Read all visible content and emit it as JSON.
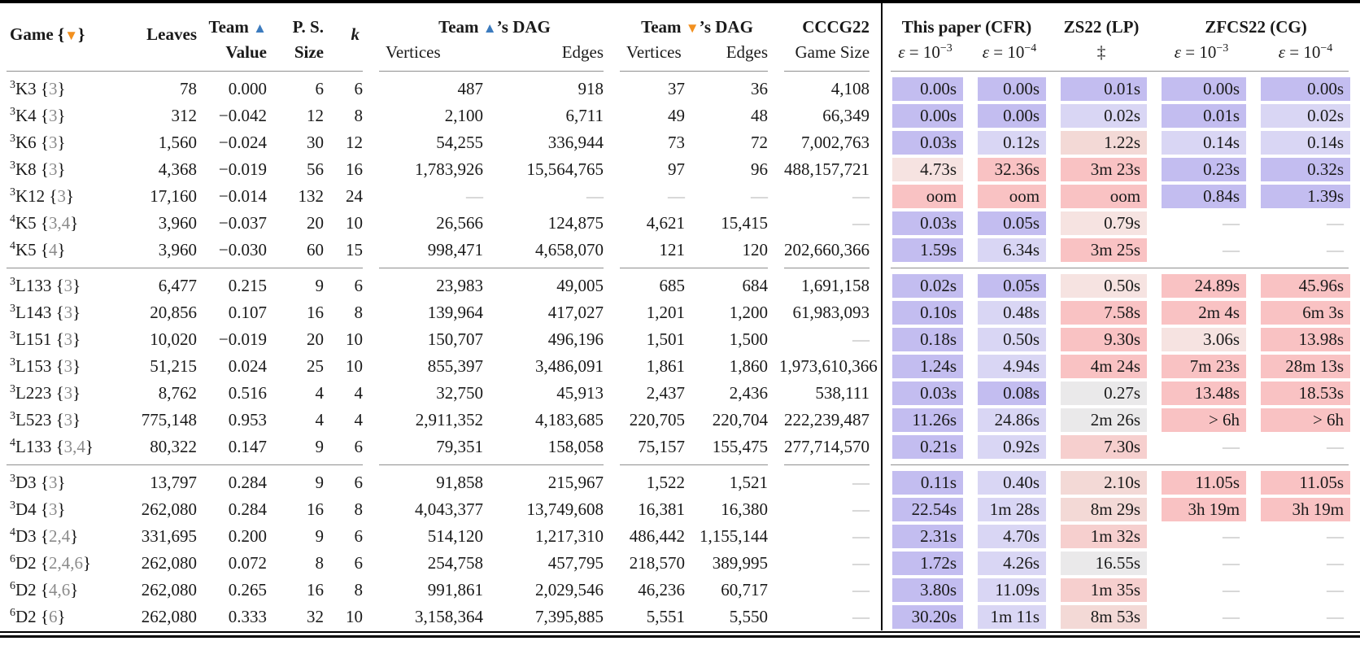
{
  "header": {
    "game": {
      "label": "Game",
      "open": "{",
      "tri": "▼",
      "close": "}"
    },
    "leaves": "Leaves",
    "team_value": {
      "line1_pre": "Team ",
      "tri": "▲",
      "line2": "Value"
    },
    "ps": {
      "line1": "P. S.",
      "line2": "Size"
    },
    "k": "k",
    "dag_a": {
      "pre": "Team ",
      "tri": "▲",
      "post": "’s DAG",
      "sub1": "Vertices",
      "sub2": "Edges"
    },
    "dag_b": {
      "pre": "Team ",
      "tri": "▼",
      "post": "’s DAG",
      "sub1": "Vertices",
      "sub2": "Edges"
    },
    "cccg": {
      "line1": "CCCG22",
      "line2": "Game Size"
    },
    "cfr": {
      "title": "This paper (CFR)",
      "eps1_sym": "ε",
      "eps1_rel": " = 10",
      "eps1_exp": "−3",
      "eps2_sym": "ε",
      "eps2_rel": " = 10",
      "eps2_exp": "−4"
    },
    "zs": {
      "title": "ZS22 (LP)",
      "sub": "‡"
    },
    "zfcs": {
      "title": "ZFCS22 (CG)",
      "eps1_sym": "ε",
      "eps1_rel": " = 10",
      "eps1_exp": "−3",
      "eps2_sym": "ε",
      "eps2_rel": " = 10",
      "eps2_exp": "−4"
    }
  },
  "colors": {
    "blue": "#c3bdf0",
    "blue2": "#d9d6f4",
    "pink0": "#f6e3e1",
    "pink1": "#f3d9d6",
    "pink2": "#f6cfce",
    "red": "#f9c2c3",
    "gray": "#eae9ea",
    "triangle_up": "#3c7bbe",
    "triangle_down": "#f2901f",
    "dash": "#b0b0b0"
  },
  "dash": "—",
  "groups": [
    {
      "rows": [
        {
          "game": {
            "pre": "3",
            "base": "K3",
            "set": "3"
          },
          "leaves": "78",
          "value": "0.000",
          "ps": "6",
          "k": "6",
          "dag_a": [
            "487",
            "918"
          ],
          "dag_b": [
            "37",
            "36"
          ],
          "cccg": "4,108",
          "times": [
            [
              "0.00s",
              "blue"
            ],
            [
              "0.00s",
              "blue"
            ],
            [
              "0.01s",
              "blue"
            ],
            [
              "0.00s",
              "blue"
            ],
            [
              "0.00s",
              "blue"
            ]
          ]
        },
        {
          "game": {
            "pre": "3",
            "base": "K4",
            "set": "3"
          },
          "leaves": "312",
          "value": "−0.042",
          "ps": "12",
          "k": "8",
          "dag_a": [
            "2,100",
            "6,711"
          ],
          "dag_b": [
            "49",
            "48"
          ],
          "cccg": "66,349",
          "times": [
            [
              "0.00s",
              "blue"
            ],
            [
              "0.00s",
              "blue"
            ],
            [
              "0.02s",
              "blue2"
            ],
            [
              "0.01s",
              "blue"
            ],
            [
              "0.02s",
              "blue2"
            ]
          ]
        },
        {
          "game": {
            "pre": "3",
            "base": "K6",
            "set": "3"
          },
          "leaves": "1,560",
          "value": "−0.024",
          "ps": "30",
          "k": "12",
          "dag_a": [
            "54,255",
            "336,944"
          ],
          "dag_b": [
            "73",
            "72"
          ],
          "cccg": "7,002,763",
          "times": [
            [
              "0.03s",
              "blue"
            ],
            [
              "0.12s",
              "blue2"
            ],
            [
              "1.22s",
              "pink1"
            ],
            [
              "0.14s",
              "blue2"
            ],
            [
              "0.14s",
              "blue2"
            ]
          ]
        },
        {
          "game": {
            "pre": "3",
            "base": "K8",
            "set": "3"
          },
          "leaves": "4,368",
          "value": "−0.019",
          "ps": "56",
          "k": "16",
          "dag_a": [
            "1,783,926",
            "15,564,765"
          ],
          "dag_b": [
            "97",
            "96"
          ],
          "cccg": "488,157,721",
          "times": [
            [
              "4.73s",
              "pink0"
            ],
            [
              "32.36s",
              "red"
            ],
            [
              "3m 23s",
              "red"
            ],
            [
              "0.23s",
              "blue"
            ],
            [
              "0.32s",
              "blue"
            ]
          ]
        },
        {
          "game": {
            "pre": "3",
            "base": "K12",
            "set": "3"
          },
          "leaves": "17,160",
          "value": "−0.014",
          "ps": "132",
          "k": "24",
          "dag_a": [
            "—",
            "—"
          ],
          "dag_b": [
            "—",
            "—"
          ],
          "cccg": "—",
          "times": [
            [
              "oom",
              "red"
            ],
            [
              "oom",
              "red"
            ],
            [
              "oom",
              "red"
            ],
            [
              "0.84s",
              "blue"
            ],
            [
              "1.39s",
              "blue"
            ]
          ]
        },
        {
          "game": {
            "pre": "4",
            "base": "K5",
            "set": "3,4"
          },
          "leaves": "3,960",
          "value": "−0.037",
          "ps": "20",
          "k": "10",
          "dag_a": [
            "26,566",
            "124,875"
          ],
          "dag_b": [
            "4,621",
            "15,415"
          ],
          "cccg": "—",
          "times": [
            [
              "0.03s",
              "blue"
            ],
            [
              "0.05s",
              "blue"
            ],
            [
              "0.79s",
              "pink0"
            ],
            [
              "—",
              ""
            ],
            [
              "—",
              ""
            ]
          ]
        },
        {
          "game": {
            "pre": "4",
            "base": "K5",
            "set": "4"
          },
          "leaves": "3,960",
          "value": "−0.030",
          "ps": "60",
          "k": "15",
          "dag_a": [
            "998,471",
            "4,658,070"
          ],
          "dag_b": [
            "121",
            "120"
          ],
          "cccg": "202,660,366",
          "times": [
            [
              "1.59s",
              "blue"
            ],
            [
              "6.34s",
              "blue2"
            ],
            [
              "3m 25s",
              "red"
            ],
            [
              "—",
              ""
            ],
            [
              "—",
              ""
            ]
          ]
        }
      ]
    },
    {
      "rows": [
        {
          "game": {
            "pre": "3",
            "base": "L133",
            "set": "3"
          },
          "leaves": "6,477",
          "value": "0.215",
          "ps": "9",
          "k": "6",
          "dag_a": [
            "23,983",
            "49,005"
          ],
          "dag_b": [
            "685",
            "684"
          ],
          "cccg": "1,691,158",
          "times": [
            [
              "0.02s",
              "blue"
            ],
            [
              "0.05s",
              "blue"
            ],
            [
              "0.50s",
              "pink0"
            ],
            [
              "24.89s",
              "red"
            ],
            [
              "45.96s",
              "red"
            ]
          ]
        },
        {
          "game": {
            "pre": "3",
            "base": "L143",
            "set": "3"
          },
          "leaves": "20,856",
          "value": "0.107",
          "ps": "16",
          "k": "8",
          "dag_a": [
            "139,964",
            "417,027"
          ],
          "dag_b": [
            "1,201",
            "1,200"
          ],
          "cccg": "61,983,093",
          "times": [
            [
              "0.10s",
              "blue"
            ],
            [
              "0.48s",
              "blue2"
            ],
            [
              "7.58s",
              "red"
            ],
            [
              "2m 4s",
              "red"
            ],
            [
              "6m 3s",
              "red"
            ]
          ]
        },
        {
          "game": {
            "pre": "3",
            "base": "L151",
            "set": "3"
          },
          "leaves": "10,020",
          "value": "−0.019",
          "ps": "20",
          "k": "10",
          "dag_a": [
            "150,707",
            "496,196"
          ],
          "dag_b": [
            "1,501",
            "1,500"
          ],
          "cccg": "—",
          "times": [
            [
              "0.18s",
              "blue"
            ],
            [
              "0.50s",
              "blue2"
            ],
            [
              "9.30s",
              "red"
            ],
            [
              "3.06s",
              "pink0"
            ],
            [
              "13.98s",
              "red"
            ]
          ]
        },
        {
          "game": {
            "pre": "3",
            "base": "L153",
            "set": "3"
          },
          "leaves": "51,215",
          "value": "0.024",
          "ps": "25",
          "k": "10",
          "dag_a": [
            "855,397",
            "3,486,091"
          ],
          "dag_b": [
            "1,861",
            "1,860"
          ],
          "cccg": "1,973,610,366",
          "times": [
            [
              "1.24s",
              "blue"
            ],
            [
              "4.94s",
              "blue2"
            ],
            [
              "4m 24s",
              "red"
            ],
            [
              "7m 23s",
              "red"
            ],
            [
              "28m 13s",
              "red"
            ]
          ]
        },
        {
          "game": {
            "pre": "3",
            "base": "L223",
            "set": "3"
          },
          "leaves": "8,762",
          "value": "0.516",
          "ps": "4",
          "k": "4",
          "dag_a": [
            "32,750",
            "45,913"
          ],
          "dag_b": [
            "2,437",
            "2,436"
          ],
          "cccg": "538,111",
          "times": [
            [
              "0.03s",
              "blue"
            ],
            [
              "0.08s",
              "blue"
            ],
            [
              "0.27s",
              "gray"
            ],
            [
              "13.48s",
              "red"
            ],
            [
              "18.53s",
              "red"
            ]
          ]
        },
        {
          "game": {
            "pre": "3",
            "base": "L523",
            "set": "3"
          },
          "leaves": "775,148",
          "value": "0.953",
          "ps": "4",
          "k": "4",
          "dag_a": [
            "2,911,352",
            "4,183,685"
          ],
          "dag_b": [
            "220,705",
            "220,704"
          ],
          "cccg": "222,239,487",
          "times": [
            [
              "11.26s",
              "blue"
            ],
            [
              "24.86s",
              "blue2"
            ],
            [
              "2m 26s",
              "gray"
            ],
            [
              "> 6h",
              "red"
            ],
            [
              "> 6h",
              "red"
            ]
          ]
        },
        {
          "game": {
            "pre": "4",
            "base": "L133",
            "set": "3,4"
          },
          "leaves": "80,322",
          "value": "0.147",
          "ps": "9",
          "k": "6",
          "dag_a": [
            "79,351",
            "158,058"
          ],
          "dag_b": [
            "75,157",
            "155,475"
          ],
          "cccg": "277,714,570",
          "times": [
            [
              "0.21s",
              "blue"
            ],
            [
              "0.92s",
              "blue2"
            ],
            [
              "7.30s",
              "pink2"
            ],
            [
              "—",
              ""
            ],
            [
              "—",
              ""
            ]
          ]
        }
      ]
    },
    {
      "rows": [
        {
          "game": {
            "pre": "3",
            "base": "D3",
            "set": "3"
          },
          "leaves": "13,797",
          "value": "0.284",
          "ps": "9",
          "k": "6",
          "dag_a": [
            "91,858",
            "215,967"
          ],
          "dag_b": [
            "1,522",
            "1,521"
          ],
          "cccg": "—",
          "times": [
            [
              "0.11s",
              "blue"
            ],
            [
              "0.40s",
              "blue2"
            ],
            [
              "2.10s",
              "pink1"
            ],
            [
              "11.05s",
              "red"
            ],
            [
              "11.05s",
              "red"
            ]
          ]
        },
        {
          "game": {
            "pre": "3",
            "base": "D4",
            "set": "3"
          },
          "leaves": "262,080",
          "value": "0.284",
          "ps": "16",
          "k": "8",
          "dag_a": [
            "4,043,377",
            "13,749,608"
          ],
          "dag_b": [
            "16,381",
            "16,380"
          ],
          "cccg": "—",
          "times": [
            [
              "22.54s",
              "blue"
            ],
            [
              "1m 28s",
              "blue2"
            ],
            [
              "8m 29s",
              "pink1"
            ],
            [
              "3h 19m",
              "red"
            ],
            [
              "3h 19m",
              "red"
            ]
          ]
        },
        {
          "game": {
            "pre": "4",
            "base": "D3",
            "set": "2,4"
          },
          "leaves": "331,695",
          "value": "0.200",
          "ps": "9",
          "k": "6",
          "dag_a": [
            "514,120",
            "1,217,310"
          ],
          "dag_b": [
            "486,442",
            "1,155,144"
          ],
          "cccg": "—",
          "times": [
            [
              "2.31s",
              "blue"
            ],
            [
              "4.70s",
              "blue2"
            ],
            [
              "1m 32s",
              "pink2"
            ],
            [
              "—",
              ""
            ],
            [
              "—",
              ""
            ]
          ]
        },
        {
          "game": {
            "pre": "6",
            "base": "D2",
            "set": "2,4,6"
          },
          "leaves": "262,080",
          "value": "0.072",
          "ps": "8",
          "k": "6",
          "dag_a": [
            "254,758",
            "457,795"
          ],
          "dag_b": [
            "218,570",
            "389,995"
          ],
          "cccg": "—",
          "times": [
            [
              "1.72s",
              "blue"
            ],
            [
              "4.26s",
              "blue2"
            ],
            [
              "16.55s",
              "gray"
            ],
            [
              "—",
              ""
            ],
            [
              "—",
              ""
            ]
          ]
        },
        {
          "game": {
            "pre": "6",
            "base": "D2",
            "set": "4,6"
          },
          "leaves": "262,080",
          "value": "0.265",
          "ps": "16",
          "k": "8",
          "dag_a": [
            "991,861",
            "2,029,546"
          ],
          "dag_b": [
            "46,236",
            "60,717"
          ],
          "cccg": "—",
          "times": [
            [
              "3.80s",
              "blue"
            ],
            [
              "11.09s",
              "blue2"
            ],
            [
              "1m 35s",
              "pink2"
            ],
            [
              "—",
              ""
            ],
            [
              "—",
              ""
            ]
          ]
        },
        {
          "game": {
            "pre": "6",
            "base": "D2",
            "set": "6"
          },
          "leaves": "262,080",
          "value": "0.333",
          "ps": "32",
          "k": "10",
          "dag_a": [
            "3,158,364",
            "7,395,885"
          ],
          "dag_b": [
            "5,551",
            "5,550"
          ],
          "cccg": "—",
          "times": [
            [
              "30.20s",
              "blue"
            ],
            [
              "1m 11s",
              "blue2"
            ],
            [
              "8m 53s",
              "pink1"
            ],
            [
              "—",
              ""
            ],
            [
              "—",
              ""
            ]
          ]
        }
      ]
    }
  ]
}
